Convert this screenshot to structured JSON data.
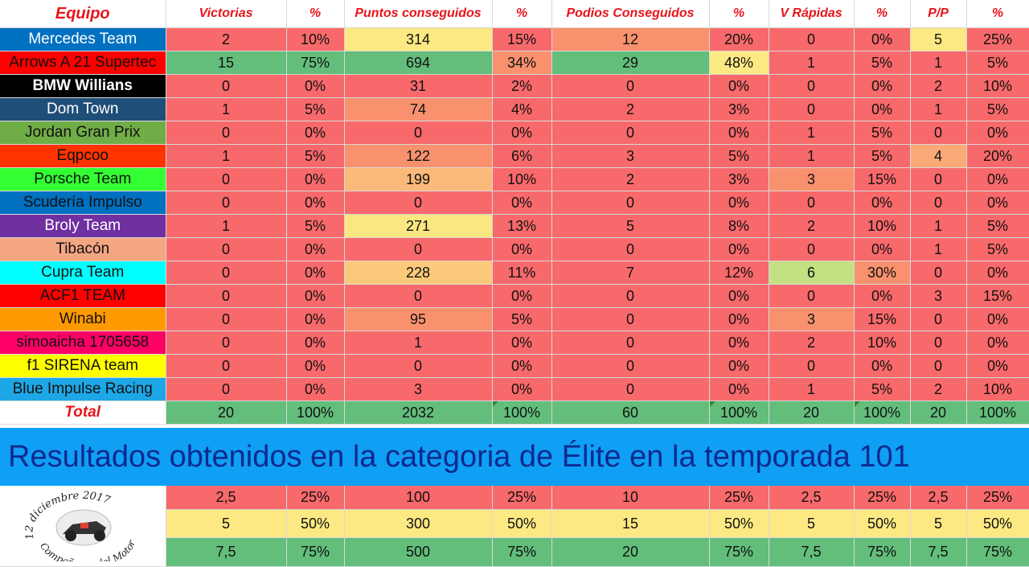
{
  "headers": [
    "Equipo",
    "Victorias",
    "%",
    "Puntos conseguidos",
    "%",
    "Podios Conseguidos",
    "%",
    "V Rápidas",
    "%",
    "P/P",
    "%"
  ],
  "colors": {
    "red": "#f8696b",
    "salmon": "#f9916e",
    "peach": "#fbb97a",
    "lightorange": "#fcc97b",
    "yellow": "#fde983",
    "lightyellow": "#fbe782",
    "green": "#63be7b",
    "lightgreen": "#c3e082",
    "tan": "#fbaa77"
  },
  "rows": [
    {
      "team": "Mercedes Team",
      "tbg": "#0070c0",
      "tfg": "#ffffff",
      "bold": false,
      "cells": [
        "2",
        "10%",
        "314",
        "15%",
        "12",
        "20%",
        "0",
        "0%",
        "5",
        "25%"
      ],
      "bgs": [
        "red",
        "red",
        "yellow",
        "red",
        "salmon",
        "red",
        "red",
        "red",
        "yellow",
        "red"
      ]
    },
    {
      "team": "Arrows A 21 Supertec",
      "tbg": "#ff0000",
      "tfg": "#111111",
      "bold": false,
      "cells": [
        "15",
        "75%",
        "694",
        "34%",
        "29",
        "48%",
        "1",
        "5%",
        "1",
        "5%"
      ],
      "bgs": [
        "green",
        "green",
        "green",
        "salmon",
        "green",
        "yellow",
        "red",
        "red",
        "red",
        "red"
      ]
    },
    {
      "team": "BMW Willians",
      "tbg": "#000000",
      "tfg": "#ffffff",
      "bold": true,
      "cells": [
        "0",
        "0%",
        "31",
        "2%",
        "0",
        "0%",
        "0",
        "0%",
        "2",
        "10%"
      ],
      "bgs": [
        "red",
        "red",
        "red",
        "red",
        "red",
        "red",
        "red",
        "red",
        "red",
        "red"
      ]
    },
    {
      "team": "Dom Town",
      "tbg": "#1f4e79",
      "tfg": "#ffffff",
      "bold": false,
      "cells": [
        "1",
        "5%",
        "74",
        "4%",
        "2",
        "3%",
        "0",
        "0%",
        "1",
        "5%"
      ],
      "bgs": [
        "red",
        "red",
        "salmon",
        "red",
        "red",
        "red",
        "red",
        "red",
        "red",
        "red"
      ]
    },
    {
      "team": "Jordan Gran Prix",
      "tbg": "#70ad47",
      "tfg": "#111111",
      "bold": false,
      "cells": [
        "0",
        "0%",
        "0",
        "0%",
        "0",
        "0%",
        "1",
        "5%",
        "0",
        "0%"
      ],
      "bgs": [
        "red",
        "red",
        "red",
        "red",
        "red",
        "red",
        "red",
        "red",
        "red",
        "red"
      ]
    },
    {
      "team": "Eqpcoo",
      "tbg": "#ff3300",
      "tfg": "#111111",
      "bold": false,
      "cells": [
        "1",
        "5%",
        "122",
        "6%",
        "3",
        "5%",
        "1",
        "5%",
        "4",
        "20%"
      ],
      "bgs": [
        "red",
        "red",
        "salmon",
        "red",
        "red",
        "red",
        "red",
        "red",
        "tan",
        "red"
      ]
    },
    {
      "team": "Porsche Team",
      "tbg": "#33ff33",
      "tfg": "#111111",
      "bold": false,
      "cells": [
        "0",
        "0%",
        "199",
        "10%",
        "2",
        "3%",
        "3",
        "15%",
        "0",
        "0%"
      ],
      "bgs": [
        "red",
        "red",
        "peach",
        "red",
        "red",
        "red",
        "salmon",
        "red",
        "red",
        "red"
      ]
    },
    {
      "team": "Scudería Impulso",
      "tbg": "#0070c0",
      "tfg": "#111111",
      "bold": false,
      "cells": [
        "0",
        "0%",
        "0",
        "0%",
        "0",
        "0%",
        "0",
        "0%",
        "0",
        "0%"
      ],
      "bgs": [
        "red",
        "red",
        "red",
        "red",
        "red",
        "red",
        "red",
        "red",
        "red",
        "red"
      ]
    },
    {
      "team": "Broly Team",
      "tbg": "#7030a0",
      "tfg": "#ffffff",
      "bold": false,
      "cells": [
        "1",
        "5%",
        "271",
        "13%",
        "5",
        "8%",
        "2",
        "10%",
        "1",
        "5%"
      ],
      "bgs": [
        "red",
        "red",
        "lightyellow",
        "red",
        "red",
        "red",
        "red",
        "red",
        "red",
        "red"
      ]
    },
    {
      "team": "Tibacón",
      "tbg": "#f4a582",
      "tfg": "#111111",
      "bold": false,
      "cells": [
        "0",
        "0%",
        "0",
        "0%",
        "0",
        "0%",
        "0",
        "0%",
        "1",
        "5%"
      ],
      "bgs": [
        "red",
        "red",
        "red",
        "red",
        "red",
        "red",
        "red",
        "red",
        "red",
        "red"
      ]
    },
    {
      "team": "Cupra Team",
      "tbg": "#00ffff",
      "tfg": "#111111",
      "bold": false,
      "cells": [
        "0",
        "0%",
        "228",
        "11%",
        "7",
        "12%",
        "6",
        "30%",
        "0",
        "0%"
      ],
      "bgs": [
        "red",
        "red",
        "lightorange",
        "red",
        "red",
        "red",
        "lightgreen",
        "salmon",
        "red",
        "red"
      ]
    },
    {
      "team": "ACF1 TEAM",
      "tbg": "#ff0000",
      "tfg": "#111111",
      "bold": false,
      "cells": [
        "0",
        "0%",
        "0",
        "0%",
        "0",
        "0%",
        "0",
        "0%",
        "3",
        "15%"
      ],
      "bgs": [
        "red",
        "red",
        "red",
        "red",
        "red",
        "red",
        "red",
        "red",
        "red",
        "red"
      ]
    },
    {
      "team": "Winabi",
      "tbg": "#ff9900",
      "tfg": "#111111",
      "bold": false,
      "cells": [
        "0",
        "0%",
        "95",
        "5%",
        "0",
        "0%",
        "3",
        "15%",
        "0",
        "0%"
      ],
      "bgs": [
        "red",
        "red",
        "salmon",
        "red",
        "red",
        "red",
        "salmon",
        "red",
        "red",
        "red"
      ]
    },
    {
      "team": "simoaicha 1705658",
      "tbg": "#ff0066",
      "tfg": "#111111",
      "bold": false,
      "cells": [
        "0",
        "0%",
        "1",
        "0%",
        "0",
        "0%",
        "2",
        "10%",
        "0",
        "0%"
      ],
      "bgs": [
        "red",
        "red",
        "red",
        "red",
        "red",
        "red",
        "red",
        "red",
        "red",
        "red"
      ]
    },
    {
      "team": "f1 SIRENA team",
      "tbg": "#ffff00",
      "tfg": "#111111",
      "bold": false,
      "cells": [
        "0",
        "0%",
        "0",
        "0%",
        "0",
        "0%",
        "0",
        "0%",
        "0",
        "0%"
      ],
      "bgs": [
        "red",
        "red",
        "red",
        "red",
        "red",
        "red",
        "red",
        "red",
        "red",
        "red"
      ]
    },
    {
      "team": "Blue Impulse Racing",
      "tbg": "#1ea7e6",
      "tfg": "#111111",
      "bold": false,
      "cells": [
        "0",
        "0%",
        "3",
        "0%",
        "0",
        "0%",
        "1",
        "5%",
        "2",
        "10%"
      ],
      "bgs": [
        "red",
        "red",
        "red",
        "red",
        "red",
        "red",
        "red",
        "red",
        "red",
        "red"
      ]
    }
  ],
  "total": {
    "label": "Total",
    "cells": [
      "20",
      "100%",
      "2032",
      "100%",
      "60",
      "100%",
      "20",
      "100%",
      "20",
      "100%"
    ]
  },
  "banner": "Resultados obtenidos en la categoria de Élite en la temporada 101",
  "logo": {
    "text_top": "12 diciembre 2017",
    "text_bottom": "Compañeros del Motor"
  },
  "thresholds": [
    {
      "bg": "#f8696b",
      "cells": [
        "2,5",
        "25%",
        "100",
        "25%",
        "10",
        "25%",
        "2,5",
        "25%",
        "2,5",
        "25%"
      ]
    },
    {
      "bg": "#fde983",
      "cells": [
        "5",
        "50%",
        "300",
        "50%",
        "15",
        "50%",
        "5",
        "50%",
        "5",
        "50%"
      ]
    },
    {
      "bg": "#63be7b",
      "cells": [
        "7,5",
        "75%",
        "500",
        "75%",
        "20",
        "75%",
        "7,5",
        "75%",
        "7,5",
        "75%"
      ]
    }
  ]
}
